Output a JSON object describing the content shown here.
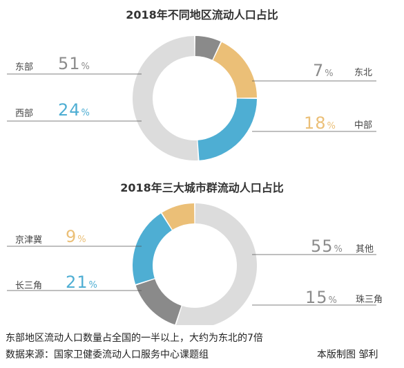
{
  "chart_data": [
    {
      "type": "pie",
      "title": "2018年不同地区流动人口占比",
      "unit": "%",
      "slices": [
        {
          "label": "东北",
          "value": 7,
          "color": "#8a8a8a"
        },
        {
          "label": "中部",
          "value": 18,
          "color": "#ebbf77"
        },
        {
          "label": "西部",
          "value": 24,
          "color": "#4eaed3"
        },
        {
          "label": "东部",
          "value": 51,
          "color": "#dcdcdc"
        }
      ],
      "start_angle_deg": 0,
      "direction": "clockwise"
    },
    {
      "type": "pie",
      "title": "2018年三大城市群流动人口占比",
      "unit": "%",
      "slices": [
        {
          "label": "其他",
          "value": 55,
          "color": "#dcdcdc"
        },
        {
          "label": "珠三角",
          "value": 15,
          "color": "#8a8a8a"
        },
        {
          "label": "长三角",
          "value": 21,
          "color": "#4eaed3"
        },
        {
          "label": "京津冀",
          "value": 9,
          "color": "#ebbf77"
        }
      ],
      "start_angle_deg": 0,
      "direction": "clockwise"
    }
  ],
  "footer": {
    "caption": "东部地区流动人口数量占全国的一半以上，大约为东北的7倍",
    "source": "数据来源：国家卫健委流动人口服务中心课题组",
    "credit": "本版制图  邹利"
  },
  "colors": {
    "light_gray": "#dcdcdc",
    "dark_gray": "#8a8a8a",
    "blue": "#4eaed3",
    "orange": "#ebbf77",
    "text_gray": "#8c8c8c"
  }
}
